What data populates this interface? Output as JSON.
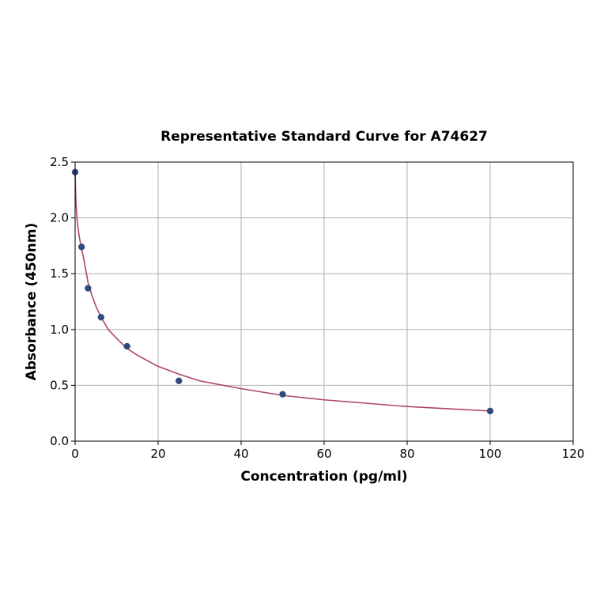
{
  "chart_data": {
    "type": "scatter",
    "title": "Representative Standard Curve for A74627",
    "xlabel": "Concentration (pg/ml)",
    "ylabel": "Absorbance (450nm)",
    "xlim": [
      0,
      120
    ],
    "ylim": [
      0,
      2.5
    ],
    "xticks": [
      0,
      20,
      40,
      60,
      80,
      100,
      120
    ],
    "xtick_labels": [
      "0",
      "20",
      "40",
      "60",
      "80",
      "100",
      "120"
    ],
    "yticks": [
      0,
      0.5,
      1.0,
      1.5,
      2.0,
      2.5
    ],
    "ytick_labels": [
      "0.0",
      "0.5",
      "1.0",
      "1.5",
      "2.0",
      "2.5"
    ],
    "grid": true,
    "point_color": "#2f4a7a",
    "curve_color": "#b0436a",
    "points": {
      "x": [
        0,
        1.56,
        3.12,
        6.25,
        12.5,
        25,
        50,
        100
      ],
      "y": [
        2.41,
        1.74,
        1.37,
        1.11,
        0.85,
        0.54,
        0.42,
        0.27
      ]
    },
    "fit_curve": {
      "x": [
        0,
        0.2,
        0.5,
        1,
        1.56,
        2,
        3.12,
        4,
        5,
        6.25,
        8,
        10,
        12.5,
        15,
        20,
        25,
        30,
        40,
        50,
        60,
        70,
        80,
        90,
        100
      ],
      "y": [
        2.41,
        2.14,
        1.97,
        1.83,
        1.72,
        1.65,
        1.42,
        1.31,
        1.21,
        1.11,
        1.0,
        0.92,
        0.83,
        0.77,
        0.67,
        0.6,
        0.54,
        0.47,
        0.41,
        0.37,
        0.34,
        0.31,
        0.29,
        0.27
      ]
    }
  }
}
